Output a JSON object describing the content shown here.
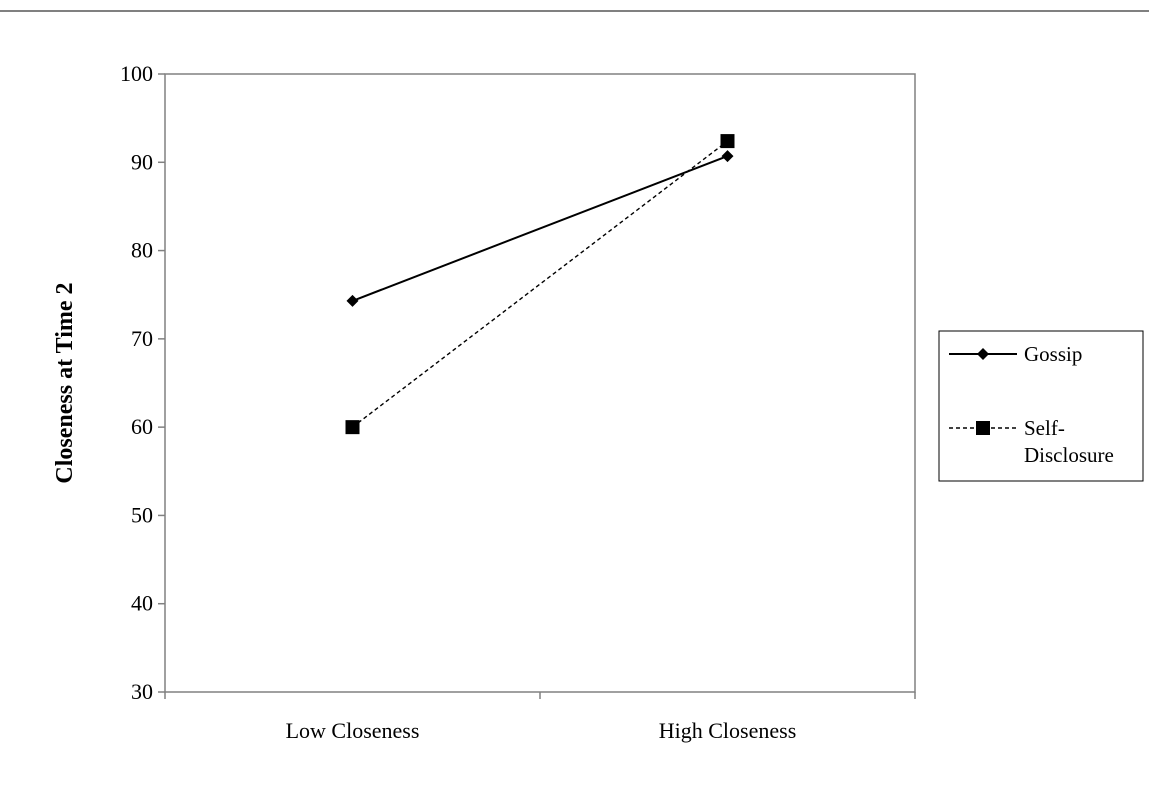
{
  "chart_data": {
    "type": "line",
    "title": "",
    "xlabel": "",
    "ylabel": "Closeness at Time 2",
    "categories": [
      "Low Closeness",
      "High Closeness"
    ],
    "ylim": [
      30,
      100
    ],
    "yticks": [
      30,
      40,
      50,
      60,
      70,
      80,
      90,
      100
    ],
    "grid": false,
    "legend_position": "right",
    "series": [
      {
        "name": "Gossip",
        "values": [
          74.3,
          90.7
        ],
        "marker": "diamond",
        "line_style": "solid",
        "color": "#000000"
      },
      {
        "name": "Self-Disclosure",
        "name_lines": [
          "Self-",
          "Disclosure"
        ],
        "values": [
          60.0,
          92.4
        ],
        "marker": "square",
        "line_style": "dashed",
        "color": "#000000"
      }
    ]
  }
}
